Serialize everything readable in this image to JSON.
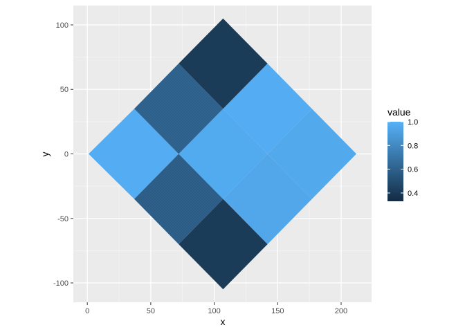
{
  "chart_data": {
    "type": "heatmap",
    "xlabel": "x",
    "ylabel": "y",
    "xlim": [
      -11,
      224
    ],
    "ylim": [
      -115,
      115
    ],
    "x_ticks": [
      0,
      50,
      100,
      150,
      200
    ],
    "y_ticks": [
      -100,
      -50,
      0,
      50,
      100
    ],
    "grid": true,
    "legend": {
      "title": "value",
      "placement": "right",
      "range": [
        0.33,
        1.0
      ],
      "ticks": [
        1.0,
        0.8,
        0.6,
        0.4
      ],
      "tick_labels": [
        "1.0",
        "0.8",
        "0.6",
        "0.4"
      ],
      "color_low": "#132B43",
      "color_high": "#56B1F7"
    },
    "cells": [
      {
        "name": "left-outer",
        "polygon": [
          [
            1,
            0
          ],
          [
            37,
            35
          ],
          [
            72,
            0
          ],
          [
            37,
            -35
          ]
        ],
        "value": 0.98
      },
      {
        "name": "center",
        "polygon": [
          [
            72,
            0
          ],
          [
            107,
            35
          ],
          [
            142,
            0
          ],
          [
            107,
            -35
          ]
        ],
        "value": 0.97
      },
      {
        "name": "right-outer",
        "polygon": [
          [
            142,
            0
          ],
          [
            177,
            35
          ],
          [
            212,
            0
          ],
          [
            177,
            -35
          ]
        ],
        "value": 0.96
      },
      {
        "name": "upper-left",
        "polygon": [
          [
            37,
            35
          ],
          [
            72,
            70
          ],
          [
            107,
            35
          ],
          [
            72,
            0
          ]
        ],
        "value": 0.62
      },
      {
        "name": "upper-right",
        "polygon": [
          [
            107,
            35
          ],
          [
            142,
            70
          ],
          [
            177,
            35
          ],
          [
            142,
            0
          ]
        ],
        "value": 0.98
      },
      {
        "name": "lower-left",
        "polygon": [
          [
            37,
            -35
          ],
          [
            72,
            0
          ],
          [
            107,
            -35
          ],
          [
            72,
            -70
          ]
        ],
        "value": 0.6
      },
      {
        "name": "lower-right",
        "polygon": [
          [
            107,
            -35
          ],
          [
            142,
            0
          ],
          [
            177,
            -35
          ],
          [
            142,
            -70
          ]
        ],
        "value": 0.95
      },
      {
        "name": "top",
        "polygon": [
          [
            72,
            70
          ],
          [
            107,
            105
          ],
          [
            142,
            70
          ],
          [
            107,
            35
          ]
        ],
        "value": 0.42
      },
      {
        "name": "bottom",
        "polygon": [
          [
            72,
            -70
          ],
          [
            107,
            -35
          ],
          [
            142,
            -70
          ],
          [
            107,
            -105
          ]
        ],
        "value": 0.42
      }
    ]
  }
}
